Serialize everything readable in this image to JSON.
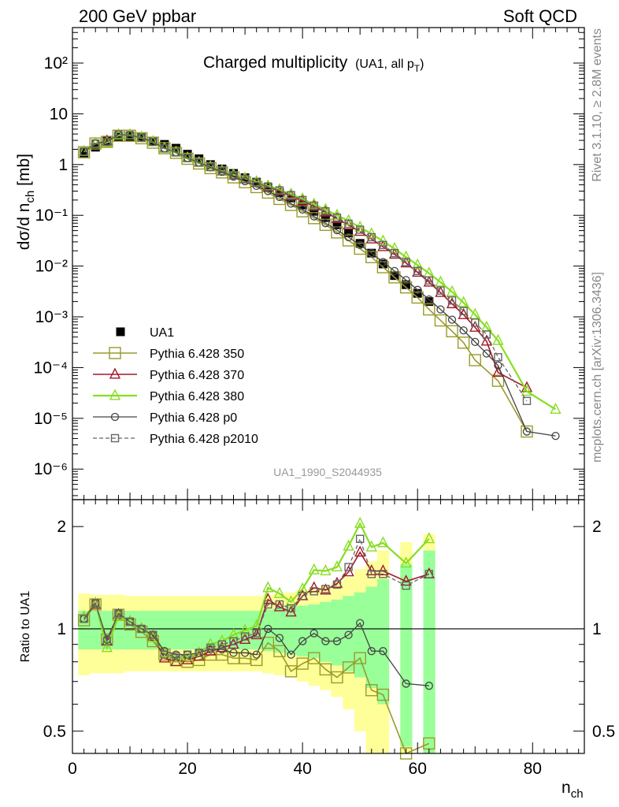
{
  "header": {
    "left": "200 GeV ppbar",
    "right": "Soft QCD"
  },
  "side_labels": {
    "top": "Rivet 3.1.10, ≥ 2.8M events",
    "bottom": "mcplots.cern.ch [arXiv:1306.3436]"
  },
  "colors": {
    "ua1": "#000000",
    "p350": "#9a9a2b",
    "p370": "#a01a2a",
    "p380": "#88dd22",
    "p0": "#444444",
    "p2010": "#666666",
    "band_yellow": "#ffff99",
    "band_green": "#99ff99"
  },
  "chart_data": [
    {
      "type": "scatter",
      "panel": "main",
      "title": "Charged multiplicity",
      "title_suffix": "(UA1, all p",
      "title_suffix_sub": "T",
      "title_suffix_end": ")",
      "watermark": "UA1_1990_S2044935",
      "ylabel": "dσ/d n",
      "ylabel_sub": "ch",
      "ylabel_unit": " [mb]",
      "yscale": "log",
      "xlim": [
        0,
        89
      ],
      "ylim": [
        2.5e-07,
        500
      ],
      "ytick_labels": [
        "10⁻⁶",
        "10⁻⁵",
        "10⁻⁴",
        "10⁻³",
        "10⁻²",
        "10⁻¹",
        "1",
        "10",
        "10²"
      ],
      "legend_position": "lower-left",
      "series": [
        {
          "name": "UA1",
          "style": "filled-square",
          "x": [
            2,
            4,
            6,
            8,
            10,
            12,
            14,
            16,
            18,
            20,
            22,
            24,
            26,
            28,
            30,
            32,
            34,
            36,
            38,
            40,
            42,
            44,
            46,
            48,
            50,
            52,
            54,
            56,
            58,
            60,
            62
          ],
          "y": [
            1.7,
            2.2,
            3.0,
            3.5,
            3.6,
            3.4,
            2.9,
            2.5,
            2.1,
            1.6,
            1.3,
            1.0,
            0.82,
            0.67,
            0.55,
            0.45,
            0.35,
            0.28,
            0.22,
            0.16,
            0.12,
            0.09,
            0.065,
            0.045,
            0.028,
            0.018,
            0.011,
            0.0065,
            0.0043,
            0.0029,
            0.002
          ]
        },
        {
          "name": "Pythia 6.428 350",
          "style": "open-square",
          "x": [
            2,
            4,
            6,
            8,
            10,
            12,
            14,
            16,
            18,
            20,
            22,
            24,
            26,
            28,
            30,
            32,
            34,
            36,
            38,
            40,
            42,
            44,
            46,
            48,
            50,
            52,
            54,
            56,
            58,
            60,
            62,
            64,
            66,
            68,
            70,
            74,
            79
          ],
          "y": [
            1.75,
            2.6,
            2.8,
            3.7,
            3.7,
            3.3,
            2.7,
            2.1,
            1.7,
            1.3,
            1.05,
            0.85,
            0.7,
            0.56,
            0.45,
            0.36,
            0.28,
            0.21,
            0.16,
            0.12,
            0.088,
            0.065,
            0.046,
            0.032,
            0.022,
            0.015,
            0.0095,
            0.006,
            0.0038,
            0.0024,
            0.0014,
            0.00085,
            0.00052,
            0.00031,
            0.00014,
            5.5e-05,
            5.5e-06
          ]
        },
        {
          "name": "Pythia 6.428 370",
          "style": "open-triangle",
          "x": [
            2,
            4,
            6,
            8,
            10,
            12,
            14,
            16,
            18,
            20,
            22,
            24,
            26,
            28,
            30,
            32,
            34,
            36,
            38,
            40,
            42,
            44,
            46,
            48,
            50,
            52,
            54,
            56,
            58,
            60,
            62,
            64,
            66,
            68,
            70,
            72,
            74,
            79
          ],
          "y": [
            1.8,
            2.6,
            2.9,
            3.8,
            3.8,
            3.4,
            2.8,
            2.1,
            1.75,
            1.35,
            1.1,
            0.9,
            0.74,
            0.62,
            0.52,
            0.44,
            0.36,
            0.3,
            0.24,
            0.19,
            0.15,
            0.115,
            0.086,
            0.064,
            0.048,
            0.034,
            0.024,
            0.017,
            0.0115,
            0.0075,
            0.0048,
            0.003,
            0.0018,
            0.0011,
            0.00062,
            0.00033,
            8e-05,
            4e-05
          ]
        },
        {
          "name": "Pythia 6.428 380",
          "style": "open-triangle",
          "x": [
            2,
            4,
            6,
            8,
            10,
            12,
            14,
            16,
            18,
            20,
            22,
            24,
            26,
            28,
            30,
            32,
            34,
            36,
            38,
            40,
            42,
            44,
            46,
            48,
            50,
            52,
            54,
            56,
            58,
            60,
            62,
            64,
            66,
            68,
            70,
            72,
            74,
            79,
            84
          ],
          "y": [
            1.8,
            2.6,
            2.7,
            3.8,
            3.8,
            3.4,
            2.8,
            2.1,
            1.75,
            1.35,
            1.1,
            0.9,
            0.75,
            0.63,
            0.54,
            0.46,
            0.38,
            0.32,
            0.26,
            0.21,
            0.165,
            0.13,
            0.1,
            0.078,
            0.058,
            0.043,
            0.031,
            0.022,
            0.015,
            0.0105,
            0.0072,
            0.0048,
            0.0031,
            0.0019,
            0.0011,
            0.00062,
            0.00034,
            3.4e-05,
            1.5e-05
          ]
        },
        {
          "name": "Pythia 6.428 p0",
          "style": "open-circle",
          "x": [
            2,
            4,
            6,
            8,
            10,
            12,
            14,
            16,
            18,
            20,
            22,
            24,
            26,
            28,
            30,
            32,
            34,
            36,
            38,
            40,
            42,
            44,
            46,
            48,
            50,
            52,
            54,
            56,
            58,
            60,
            62,
            64,
            66,
            68,
            70,
            72,
            74,
            79,
            84
          ],
          "y": [
            1.8,
            2.6,
            2.8,
            3.9,
            3.8,
            3.4,
            2.8,
            2.1,
            1.75,
            1.35,
            1.1,
            0.88,
            0.72,
            0.58,
            0.47,
            0.38,
            0.3,
            0.23,
            0.17,
            0.13,
            0.095,
            0.07,
            0.051,
            0.037,
            0.026,
            0.018,
            0.012,
            0.008,
            0.0053,
            0.0034,
            0.0022,
            0.0014,
            0.00088,
            0.00054,
            0.00032,
            0.00019,
            0.00011,
            5.5e-06,
            4.5e-06
          ]
        },
        {
          "name": "Pythia 6.428 p2010",
          "style": "open-square-dashed",
          "x": [
            2,
            4,
            6,
            8,
            10,
            12,
            14,
            16,
            18,
            20,
            22,
            24,
            26,
            28,
            30,
            32,
            34,
            36,
            38,
            40,
            42,
            44,
            46,
            48,
            50,
            52,
            54,
            56,
            58,
            60,
            62,
            64,
            66,
            68,
            70,
            72,
            74,
            79
          ],
          "y": [
            1.8,
            2.6,
            2.8,
            3.9,
            3.8,
            3.4,
            2.8,
            2.1,
            1.75,
            1.35,
            1.1,
            0.9,
            0.75,
            0.62,
            0.52,
            0.44,
            0.37,
            0.31,
            0.25,
            0.2,
            0.155,
            0.12,
            0.09,
            0.068,
            0.052,
            0.037,
            0.026,
            0.018,
            0.012,
            0.008,
            0.0052,
            0.0033,
            0.0021,
            0.0013,
            0.00077,
            0.00045,
            0.00016,
            2.2e-05
          ]
        }
      ]
    },
    {
      "type": "scatter",
      "panel": "ratio",
      "xlabel": "n",
      "xlabel_sub": "ch",
      "ylabel": "Ratio to UA1",
      "yscale": "log",
      "xlim": [
        0,
        89
      ],
      "ylim": [
        0.43,
        2.4
      ],
      "xticks": [
        0,
        20,
        40,
        60,
        80
      ],
      "yticks": [
        0.5,
        1,
        2
      ],
      "band_x": [
        2,
        4,
        6,
        8,
        10,
        12,
        14,
        16,
        18,
        20,
        22,
        24,
        26,
        28,
        30,
        32,
        34,
        36,
        38,
        40,
        42,
        44,
        46,
        48,
        50,
        52,
        54,
        56,
        58,
        60,
        62
      ],
      "band_yellow_halfwidth": [
        0.27,
        0.26,
        0.26,
        0.26,
        0.25,
        0.25,
        0.25,
        0.25,
        0.25,
        0.25,
        0.25,
        0.25,
        0.25,
        0.25,
        0.25,
        0.25,
        0.26,
        0.27,
        0.28,
        0.3,
        0.32,
        0.34,
        0.37,
        0.42,
        0.5,
        0.58,
        0.7,
        0,
        0.8,
        0,
        0.9
      ],
      "band_green_halfwidth": [
        0.13,
        0.13,
        0.13,
        0.13,
        0.13,
        0.13,
        0.13,
        0.13,
        0.13,
        0.13,
        0.13,
        0.13,
        0.13,
        0.13,
        0.13,
        0.13,
        0.14,
        0.15,
        0.16,
        0.17,
        0.18,
        0.2,
        0.22,
        0.25,
        0.28,
        0.33,
        0.4,
        0,
        0.55,
        0,
        0.7
      ],
      "series": [
        {
          "name": "Pythia 6.428 350",
          "x": [
            2,
            4,
            6,
            8,
            10,
            12,
            14,
            16,
            18,
            20,
            22,
            24,
            26,
            28,
            30,
            32,
            34,
            36,
            38,
            40,
            42,
            44,
            46,
            48,
            50,
            52,
            54,
            58,
            62
          ],
          "y": [
            1.06,
            1.18,
            0.93,
            1.1,
            1.03,
            0.98,
            0.92,
            0.84,
            0.81,
            0.8,
            0.81,
            0.84,
            0.84,
            0.82,
            0.82,
            0.81,
            0.91,
            0.86,
            0.75,
            0.79,
            0.82,
            0.76,
            0.72,
            0.77,
            0.82,
            0.66,
            0.64,
            0.43,
            0.46
          ]
        },
        {
          "name": "Pythia 6.428 370",
          "x": [
            2,
            4,
            6,
            8,
            10,
            12,
            14,
            16,
            18,
            20,
            22,
            24,
            26,
            28,
            30,
            32,
            34,
            36,
            38,
            40,
            42,
            44,
            46,
            48,
            50,
            52,
            54,
            58,
            62
          ],
          "y": [
            1.08,
            1.18,
            0.92,
            1.1,
            1.05,
            1.0,
            0.95,
            0.82,
            0.8,
            0.81,
            0.83,
            0.86,
            0.88,
            0.9,
            0.93,
            0.96,
            1.22,
            1.16,
            1.12,
            1.25,
            1.32,
            1.3,
            1.36,
            1.47,
            1.68,
            1.48,
            1.48,
            1.38,
            1.45
          ]
        },
        {
          "name": "Pythia 6.428 380",
          "x": [
            2,
            4,
            6,
            8,
            10,
            12,
            14,
            16,
            18,
            20,
            22,
            24,
            26,
            28,
            30,
            32,
            34,
            36,
            38,
            40,
            42,
            44,
            46,
            48,
            50,
            52,
            54,
            58,
            62
          ],
          "y": [
            1.08,
            1.19,
            0.88,
            1.09,
            1.05,
            1.0,
            0.94,
            0.85,
            0.82,
            0.83,
            0.85,
            0.9,
            0.92,
            0.96,
            0.99,
            1.02,
            1.32,
            1.27,
            1.2,
            1.31,
            1.49,
            1.48,
            1.52,
            1.75,
            2.04,
            1.74,
            1.79,
            1.56,
            1.84
          ]
        },
        {
          "name": "Pythia 6.428 p0",
          "x": [
            2,
            4,
            6,
            8,
            10,
            12,
            14,
            16,
            18,
            20,
            22,
            24,
            26,
            28,
            30,
            32,
            34,
            36,
            38,
            40,
            42,
            44,
            46,
            48,
            50,
            52,
            54,
            58,
            62
          ],
          "y": [
            1.07,
            1.19,
            0.93,
            1.11,
            1.05,
            1.0,
            0.96,
            0.86,
            0.84,
            0.84,
            0.85,
            0.87,
            0.87,
            0.85,
            0.85,
            0.84,
            1.0,
            0.94,
            0.84,
            0.92,
            0.97,
            0.92,
            0.92,
            0.96,
            1.04,
            0.86,
            0.86,
            0.69,
            0.68
          ]
        },
        {
          "name": "Pythia 6.428 p2010",
          "x": [
            2,
            4,
            6,
            8,
            10,
            12,
            14,
            16,
            18,
            20,
            22,
            24,
            26,
            28,
            30,
            32,
            34,
            36,
            38,
            40,
            42,
            44,
            46,
            48,
            50,
            52,
            54,
            58,
            62
          ],
          "y": [
            1.07,
            1.19,
            0.92,
            1.11,
            1.05,
            1.0,
            0.96,
            0.84,
            0.83,
            0.84,
            0.85,
            0.88,
            0.9,
            0.92,
            0.95,
            0.97,
            1.18,
            1.18,
            1.15,
            1.25,
            1.29,
            1.31,
            1.35,
            1.52,
            1.84,
            1.45,
            1.45,
            1.34,
            1.45
          ]
        }
      ]
    }
  ]
}
